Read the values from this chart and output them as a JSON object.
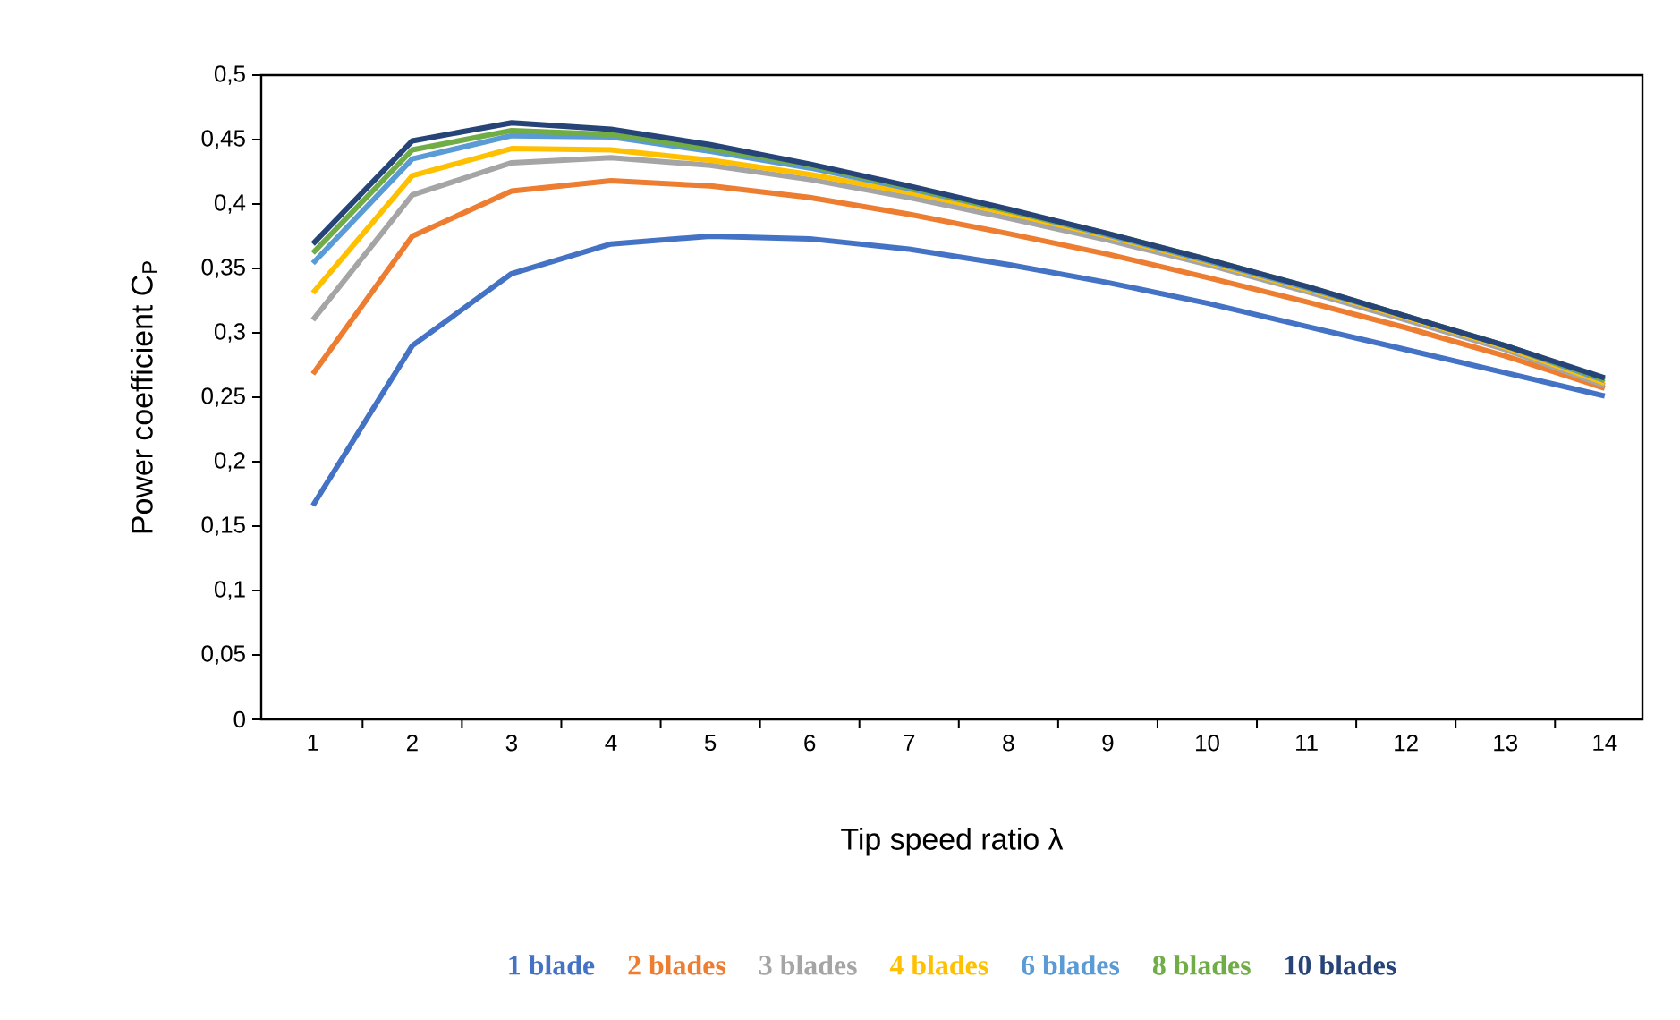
{
  "chart_data": {
    "type": "line",
    "xlabel": "Tip speed ratio λ",
    "ylabel": "Power coefficient C$_{P}$",
    "categories": [
      "1",
      "2",
      "3",
      "4",
      "5",
      "6",
      "7",
      "8",
      "9",
      "10",
      "11",
      "12",
      "13",
      "14"
    ],
    "ylim": [
      0,
      0.5
    ],
    "yticks": [
      0,
      {
        "value": 0.05,
        "label": "0,05"
      },
      {
        "value": 0.1,
        "label": "0,1"
      },
      {
        "value": 0.15,
        "label": "0,15"
      },
      {
        "value": 0.2,
        "label": "0,2"
      },
      {
        "value": 0.25,
        "label": "0,25"
      },
      {
        "value": 0.3,
        "label": "0,3"
      },
      {
        "value": 0.35,
        "label": "0,35"
      },
      {
        "value": 0.4,
        "label": "0,4"
      },
      {
        "value": 0.45,
        "label": "0,45"
      },
      {
        "value": 0.5,
        "label": "0,5"
      }
    ],
    "legend": "bottom",
    "line_style": "solid",
    "grid": false,
    "series": [
      {
        "name": "1 blade",
        "color": "#4472c4",
        "values": [
          0.166,
          0.29,
          0.346,
          0.369,
          0.375,
          0.373,
          0.365,
          0.353,
          0.339,
          0.323,
          0.305,
          0.287,
          0.269,
          0.251
        ]
      },
      {
        "name": "2 blades",
        "color": "#ed7d31",
        "values": [
          0.268,
          0.375,
          0.41,
          0.418,
          0.414,
          0.405,
          0.392,
          0.377,
          0.361,
          0.343,
          0.324,
          0.304,
          0.282,
          0.257
        ]
      },
      {
        "name": "3 blades",
        "color": "#a5a5a5",
        "values": [
          0.31,
          0.407,
          0.432,
          0.436,
          0.43,
          0.419,
          0.405,
          0.389,
          0.372,
          0.353,
          0.332,
          0.31,
          0.287,
          0.259
        ]
      },
      {
        "name": "4 blades",
        "color": "#ffc000",
        "values": [
          0.331,
          0.422,
          0.443,
          0.442,
          0.434,
          0.423,
          0.409,
          0.393,
          0.375,
          0.355,
          0.334,
          0.312,
          0.289,
          0.261
        ]
      },
      {
        "name": "6 blades",
        "color": "#5b9bd5",
        "values": [
          0.354,
          0.435,
          0.453,
          0.452,
          0.441,
          0.428,
          0.412,
          0.395,
          0.376,
          0.356,
          0.335,
          0.313,
          0.29,
          0.263
        ]
      },
      {
        "name": "8 blades",
        "color": "#70ad47",
        "values": [
          0.362,
          0.442,
          0.457,
          0.454,
          0.443,
          0.43,
          0.413,
          0.395,
          0.377,
          0.357,
          0.336,
          0.313,
          0.29,
          0.264
        ]
      },
      {
        "name": "10 blades",
        "color": "#264478",
        "values": [
          0.369,
          0.449,
          0.463,
          0.458,
          0.446,
          0.431,
          0.414,
          0.396,
          0.377,
          0.357,
          0.336,
          0.313,
          0.29,
          0.265
        ]
      }
    ]
  }
}
